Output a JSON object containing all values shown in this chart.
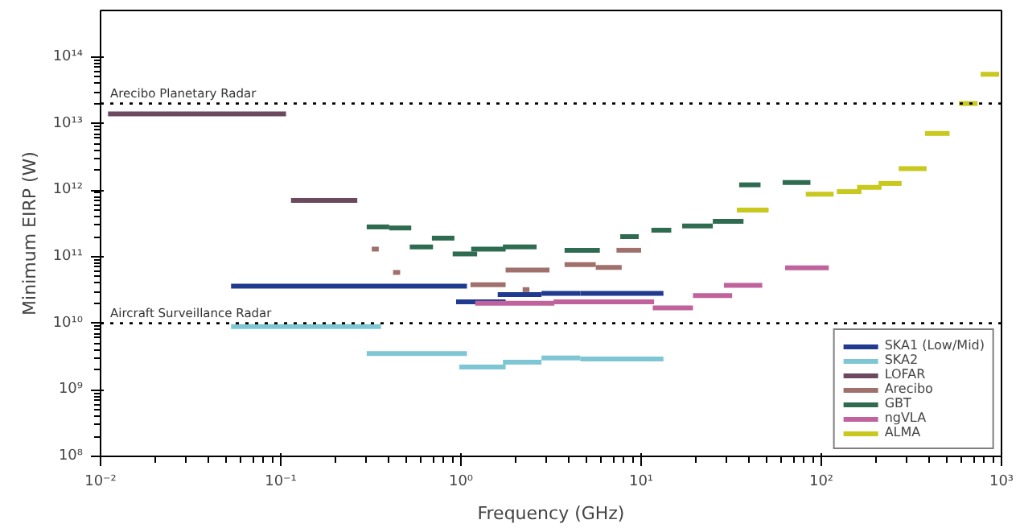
{
  "chart_data": {
    "type": "line",
    "xlabel": "Frequency (GHz)",
    "ylabel": "Minimum EIRP (W)",
    "log": "xy",
    "grid": false,
    "legend": "bottom right",
    "line_style": "solid",
    "marker": "none",
    "xlim": [
      0.01,
      1000
    ],
    "ylim": [
      100000000.0,
      500000000000000.0
    ],
    "xticks": [
      {
        "value": 0.01,
        "label": "10⁻²"
      },
      {
        "value": 0.1,
        "label": "10⁻¹"
      },
      {
        "value": 1,
        "label": "10⁰"
      },
      {
        "value": 10,
        "label": "10¹"
      },
      {
        "value": 100,
        "label": "10²"
      },
      {
        "value": 1000,
        "label": "10³"
      }
    ],
    "yticks": [
      {
        "value": 100000000.0,
        "label": "10⁸"
      },
      {
        "value": 1000000000.0,
        "label": "10⁹"
      },
      {
        "value": 10000000000.0,
        "label": "10¹⁰"
      },
      {
        "value": 100000000000.0,
        "label": "10¹¹"
      },
      {
        "value": 1000000000000.0,
        "label": "10¹²"
      },
      {
        "value": 10000000000000.0,
        "label": "10¹³"
      },
      {
        "value": 100000000000000.0,
        "label": "10¹⁴"
      }
    ],
    "series": [
      {
        "name": "SKA1 (Low/Mid)",
        "color": "#1f3a8f",
        "x": [
          0.053,
          1.08,
          null,
          0.94,
          1.77,
          null,
          1.6,
          2.8,
          null,
          2.8,
          4.6,
          null,
          4.6,
          13.3
        ],
        "values": [
          36000000000.0,
          36000000000.0,
          null,
          21000000000.0,
          21000000000.0,
          null,
          27000000000.0,
          27000000000.0,
          null,
          28000000000.0,
          28000000000.0,
          null,
          28000000000.0,
          28000000000.0
        ]
      },
      {
        "name": "SKA2",
        "color": "#7fc6d4",
        "x": [
          0.053,
          0.36,
          null,
          0.3,
          1.08,
          null,
          0.98,
          1.77,
          null,
          1.71,
          2.8,
          null,
          2.8,
          4.6,
          null,
          4.6,
          13.3
        ],
        "values": [
          8900000000.0,
          8900000000.0,
          null,
          3500000000.0,
          3500000000.0,
          null,
          2200000000.0,
          2200000000.0,
          null,
          2600000000.0,
          2600000000.0,
          null,
          3000000000.0,
          3000000000.0,
          null,
          2900000000.0,
          2900000000.0
        ]
      },
      {
        "name": "LOFAR",
        "color": "#6b4a60",
        "x": [
          0.011,
          0.107,
          null,
          0.114,
          0.266
        ],
        "values": [
          14000000000000.0,
          14000000000000.0,
          null,
          700000000000.0,
          700000000000.0
        ]
      },
      {
        "name": "Arecibo",
        "color": "#a0706c",
        "x": [
          0.32,
          0.35,
          null,
          0.42,
          0.46,
          null,
          1.13,
          1.77,
          null,
          1.77,
          3.1,
          null,
          2.2,
          2.4,
          null,
          3.76,
          5.6,
          null,
          5.6,
          7.8,
          null,
          7.3,
          10
        ],
        "values": [
          130000000000.0,
          130000000000.0,
          null,
          58000000000.0,
          58000000000.0,
          null,
          38000000000.0,
          38000000000.0,
          null,
          63000000000.0,
          63000000000.0,
          null,
          32000000000.0,
          32000000000.0,
          null,
          76000000000.0,
          76000000000.0,
          null,
          69000000000.0,
          69000000000.0,
          null,
          125000000000.0,
          125000000000.0
        ]
      },
      {
        "name": "GBT",
        "color": "#2e6b50",
        "x": [
          0.3,
          0.4,
          null,
          0.4,
          0.53,
          null,
          0.52,
          0.7,
          null,
          0.69,
          0.92,
          null,
          0.9,
          1.23,
          null,
          1.14,
          1.77,
          null,
          1.71,
          2.63,
          null,
          3.76,
          5.9,
          null,
          7.66,
          9.7,
          null,
          11.4,
          14.7,
          null,
          16.9,
          25,
          null,
          25,
          37,
          null,
          35,
          46,
          null,
          61,
          87
        ],
        "values": [
          280000000000.0,
          280000000000.0,
          null,
          270000000000.0,
          270000000000.0,
          null,
          140000000000.0,
          140000000000.0,
          null,
          190000000000.0,
          190000000000.0,
          null,
          110000000000.0,
          110000000000.0,
          null,
          130000000000.0,
          130000000000.0,
          null,
          140000000000.0,
          140000000000.0,
          null,
          125000000000.0,
          125000000000.0,
          null,
          200000000000.0,
          200000000000.0,
          null,
          250000000000.0,
          250000000000.0,
          null,
          290000000000.0,
          290000000000.0,
          null,
          340000000000.0,
          340000000000.0,
          null,
          1200000000000.0,
          1200000000000.0,
          null,
          1300000000000.0,
          1300000000000.0
        ]
      },
      {
        "name": "ngVLA",
        "color": "#c0639c",
        "x": [
          1.2,
          3.3,
          null,
          3.27,
          11.8,
          null,
          11.6,
          19.4,
          null,
          19.4,
          32,
          null,
          28.8,
          47,
          null,
          63,
          110
        ],
        "values": [
          20000000000.0,
          20000000000.0,
          null,
          21000000000.0,
          21000000000.0,
          null,
          17000000000.0,
          17000000000.0,
          null,
          26000000000.0,
          26000000000.0,
          null,
          37000000000.0,
          37000000000.0,
          null,
          68000000000.0,
          68000000000.0
        ]
      },
      {
        "name": "ALMA",
        "color": "#c8c81e",
        "x": [
          34,
          51,
          null,
          82,
          117,
          null,
          122,
          167,
          null,
          158,
          216,
          null,
          208,
          279,
          null,
          269,
          384,
          null,
          376,
          515,
          null,
          581,
          736,
          null,
          766,
          970
        ],
        "values": [
          500000000000.0,
          500000000000.0,
          null,
          870000000000.0,
          870000000000.0,
          null,
          950000000000.0,
          950000000000.0,
          null,
          1100000000000.0,
          1100000000000.0,
          null,
          1260000000000.0,
          1260000000000.0,
          null,
          2100000000000.0,
          2100000000000.0,
          null,
          7100000000000.0,
          7100000000000.0,
          null,
          20000000000000.0,
          20000000000000.0,
          null,
          55000000000000.0,
          55000000000000.0
        ]
      }
    ],
    "ref_lines": [
      {
        "axis": "y",
        "value": 20000000000000.0,
        "label": "Arecibo Planetary Radar",
        "color": "#000000",
        "line_style": "dotted"
      },
      {
        "axis": "y",
        "value": 10000000000.0,
        "label": "Aircraft Surveillance Radar",
        "color": "#000000",
        "line_style": "dotted"
      }
    ]
  }
}
